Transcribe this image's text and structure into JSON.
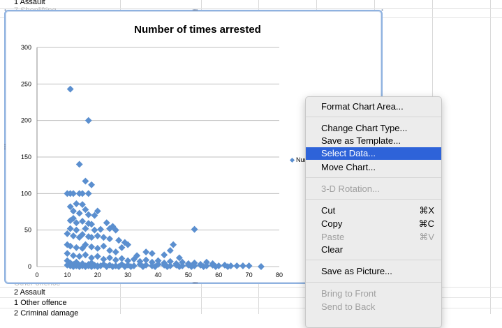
{
  "sheet": {
    "rows_top": [
      {
        "num": "1",
        "label": "Assault"
      },
      {
        "num": "7",
        "label": "Shoplifting"
      }
    ],
    "rows_bottom": [
      {
        "num": "",
        "label": "Other offence"
      },
      {
        "num": "2",
        "label": "Assault"
      },
      {
        "num": "1",
        "label": "Other offence"
      },
      {
        "num": "2",
        "label": "Criminal damage"
      }
    ]
  },
  "chart": {
    "legend_text": "Nur"
  },
  "chart_data": {
    "type": "scatter",
    "title": "Number of times arrested",
    "xlim": [
      0,
      80
    ],
    "ylim": [
      0,
      300
    ],
    "x_ticks": [
      0,
      10,
      20,
      30,
      40,
      50,
      60,
      70,
      80
    ],
    "y_ticks": [
      0,
      50,
      100,
      150,
      200,
      250,
      300
    ],
    "grid": "horizontal",
    "marker_color": "#5b8fcf",
    "points": [
      [
        11,
        243
      ],
      [
        17,
        200
      ],
      [
        14,
        140
      ],
      [
        16,
        117
      ],
      [
        18,
        112
      ],
      [
        10,
        100
      ],
      [
        11,
        100
      ],
      [
        12,
        100
      ],
      [
        14,
        100
      ],
      [
        15,
        100
      ],
      [
        17,
        100
      ],
      [
        11,
        82
      ],
      [
        13,
        86
      ],
      [
        15,
        85
      ],
      [
        12,
        76
      ],
      [
        14,
        73
      ],
      [
        16,
        78
      ],
      [
        17,
        71
      ],
      [
        19,
        70
      ],
      [
        20,
        76
      ],
      [
        11,
        63
      ],
      [
        12,
        66
      ],
      [
        13,
        60
      ],
      [
        15,
        62
      ],
      [
        17,
        59
      ],
      [
        18,
        58
      ],
      [
        23,
        60
      ],
      [
        25,
        55
      ],
      [
        11,
        52
      ],
      [
        13,
        50
      ],
      [
        16,
        52
      ],
      [
        19,
        50
      ],
      [
        21,
        51
      ],
      [
        24,
        52
      ],
      [
        26,
        50
      ],
      [
        52,
        51
      ],
      [
        10,
        45
      ],
      [
        12,
        42
      ],
      [
        14,
        40
      ],
      [
        15,
        44
      ],
      [
        17,
        41
      ],
      [
        18,
        40
      ],
      [
        20,
        42
      ],
      [
        22,
        40
      ],
      [
        24,
        38
      ],
      [
        27,
        36
      ],
      [
        29,
        33
      ],
      [
        45,
        30
      ],
      [
        10,
        30
      ],
      [
        11,
        28
      ],
      [
        13,
        26
      ],
      [
        15,
        25
      ],
      [
        16,
        30
      ],
      [
        18,
        27
      ],
      [
        20,
        25
      ],
      [
        22,
        28
      ],
      [
        24,
        22
      ],
      [
        26,
        20
      ],
      [
        28,
        26
      ],
      [
        30,
        30
      ],
      [
        33,
        15
      ],
      [
        36,
        20
      ],
      [
        38,
        18
      ],
      [
        42,
        16
      ],
      [
        44,
        22
      ],
      [
        47,
        12
      ],
      [
        10,
        18
      ],
      [
        12,
        15
      ],
      [
        14,
        14
      ],
      [
        16,
        16
      ],
      [
        18,
        12
      ],
      [
        20,
        14
      ],
      [
        22,
        10
      ],
      [
        24,
        12
      ],
      [
        26,
        9
      ],
      [
        28,
        11
      ],
      [
        30,
        8
      ],
      [
        32,
        10
      ],
      [
        34,
        7
      ],
      [
        36,
        9
      ],
      [
        38,
        6
      ],
      [
        40,
        8
      ],
      [
        42,
        5
      ],
      [
        44,
        7
      ],
      [
        46,
        4
      ],
      [
        48,
        6
      ],
      [
        50,
        4
      ],
      [
        52,
        5
      ],
      [
        54,
        3
      ],
      [
        56,
        6
      ],
      [
        58,
        4
      ],
      [
        10,
        8
      ],
      [
        11,
        5
      ],
      [
        12,
        3
      ],
      [
        13,
        6
      ],
      [
        14,
        2
      ],
      [
        15,
        4
      ],
      [
        16,
        1
      ],
      [
        17,
        3
      ],
      [
        18,
        5
      ],
      [
        19,
        2
      ],
      [
        20,
        1
      ],
      [
        22,
        3
      ],
      [
        24,
        2
      ],
      [
        26,
        1
      ],
      [
        28,
        3
      ],
      [
        30,
        2
      ],
      [
        32,
        1
      ],
      [
        34,
        3
      ],
      [
        36,
        2
      ],
      [
        38,
        1
      ],
      [
        40,
        3
      ],
      [
        42,
        2
      ],
      [
        44,
        1
      ],
      [
        46,
        2
      ],
      [
        48,
        1
      ],
      [
        50,
        2
      ],
      [
        52,
        1
      ],
      [
        54,
        2
      ],
      [
        56,
        1
      ],
      [
        58,
        2
      ],
      [
        60,
        1
      ],
      [
        62,
        2
      ],
      [
        64,
        1
      ],
      [
        66,
        1
      ],
      [
        68,
        1
      ],
      [
        70,
        1
      ],
      [
        74,
        0
      ],
      [
        10,
        2
      ],
      [
        11,
        1
      ],
      [
        12,
        0
      ],
      [
        13,
        1
      ],
      [
        14,
        0
      ],
      [
        15,
        1
      ],
      [
        16,
        0
      ],
      [
        17,
        1
      ],
      [
        18,
        0
      ],
      [
        19,
        1
      ],
      [
        20,
        0
      ],
      [
        21,
        1
      ],
      [
        23,
        0
      ],
      [
        25,
        0
      ],
      [
        27,
        0
      ],
      [
        29,
        0
      ],
      [
        31,
        0
      ],
      [
        35,
        0
      ],
      [
        39,
        0
      ],
      [
        43,
        0
      ],
      [
        47,
        0
      ],
      [
        51,
        0
      ],
      [
        55,
        0
      ],
      [
        59,
        0
      ],
      [
        63,
        0
      ]
    ]
  },
  "menu": {
    "items": [
      {
        "label": "Format Chart Area...",
        "shortcut": "",
        "state": "enabled"
      },
      {
        "label": "Change Chart Type...",
        "shortcut": "",
        "state": "enabled"
      },
      {
        "label": "Save as Template...",
        "shortcut": "",
        "state": "enabled"
      },
      {
        "label": "Select Data...",
        "shortcut": "",
        "state": "selected"
      },
      {
        "label": "Move Chart...",
        "shortcut": "",
        "state": "enabled"
      },
      {
        "label": "3-D Rotation...",
        "shortcut": "",
        "state": "disabled"
      },
      {
        "label": "Cut",
        "shortcut": "⌘X",
        "state": "enabled"
      },
      {
        "label": "Copy",
        "shortcut": "⌘C",
        "state": "enabled"
      },
      {
        "label": "Paste",
        "shortcut": "⌘V",
        "state": "disabled"
      },
      {
        "label": "Clear",
        "shortcut": "",
        "state": "enabled"
      },
      {
        "label": "Save as Picture...",
        "shortcut": "",
        "state": "enabled"
      },
      {
        "label": "Bring to Front",
        "shortcut": "",
        "state": "disabled"
      },
      {
        "label": "Send to Back",
        "shortcut": "",
        "state": "disabled"
      }
    ]
  }
}
